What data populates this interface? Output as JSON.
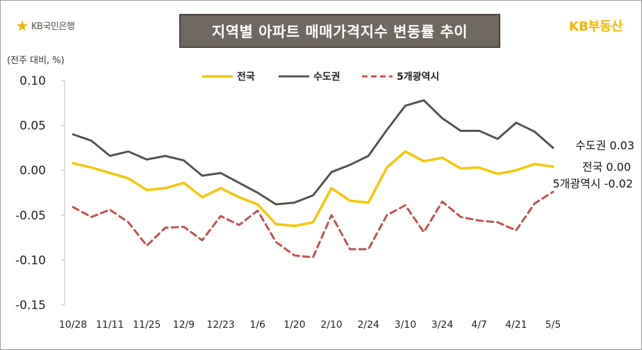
{
  "header": {
    "left_logo": "KB국민은행",
    "title": "지역별 아파트 매매가격지수 변동률 추이",
    "right_logo": "KB부동산"
  },
  "unit_label": "(전주 대비, %)",
  "colors": {
    "national": "#f7c600",
    "capital": "#57514a",
    "metro5": "#c0504d",
    "title_bg": "#6f6860"
  },
  "chart_data": {
    "type": "line",
    "title": "지역별 아파트 매매가격지수 변동률 추이",
    "ylabel": "(전주 대비, %)",
    "xlabel": "",
    "ylim": [
      -0.15,
      0.1
    ],
    "yticks": [
      "0.10",
      "0.05",
      "0.00",
      "-0.05",
      "-0.10",
      "-0.15"
    ],
    "grid": false,
    "legend_position": "top-center",
    "x_tick_labels": [
      "10/28",
      "11/11",
      "11/25",
      "12/9",
      "12/23",
      "1/6",
      "1/20",
      "2/10",
      "2/24",
      "3/10",
      "3/24",
      "4/7",
      "4/21",
      "5/5"
    ],
    "series": [
      {
        "name": "전국",
        "style": "solid",
        "values": [
          0.008,
          0.003,
          -0.003,
          -0.009,
          -0.022,
          -0.02,
          -0.014,
          -0.03,
          -0.02,
          -0.03,
          -0.038,
          -0.06,
          -0.062,
          -0.058,
          -0.02,
          -0.034,
          -0.036,
          0.003,
          0.021,
          0.01,
          0.014,
          0.002,
          0.003,
          -0.004,
          0.0,
          0.007,
          0.004
        ],
        "end_label": "전국 0.00"
      },
      {
        "name": "수도권",
        "style": "solid",
        "values": [
          0.04,
          0.033,
          0.016,
          0.021,
          0.012,
          0.016,
          0.011,
          -0.006,
          -0.003,
          -0.014,
          -0.025,
          -0.038,
          -0.036,
          -0.028,
          -0.002,
          0.006,
          0.016,
          0.045,
          0.072,
          0.078,
          0.058,
          0.044,
          0.044,
          0.035,
          0.053,
          0.043,
          0.025
        ],
        "end_label": "수도권 0.03"
      },
      {
        "name": "5개광역시",
        "style": "dashed",
        "values": [
          -0.041,
          -0.052,
          -0.044,
          -0.058,
          -0.084,
          -0.064,
          -0.063,
          -0.078,
          -0.051,
          -0.061,
          -0.045,
          -0.08,
          -0.095,
          -0.097,
          -0.05,
          -0.088,
          -0.088,
          -0.05,
          -0.039,
          -0.069,
          -0.035,
          -0.052,
          -0.056,
          -0.058,
          -0.067,
          -0.037,
          -0.024
        ],
        "end_label": "5개광역시 -0.02"
      }
    ]
  }
}
